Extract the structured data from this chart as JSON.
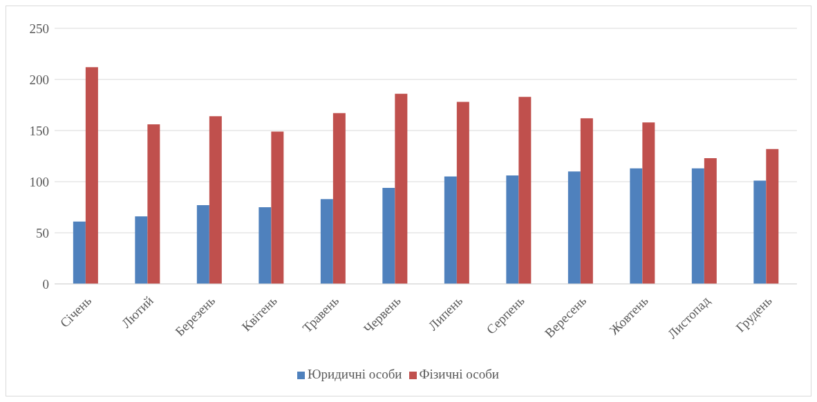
{
  "chart_data": {
    "type": "bar",
    "categories": [
      "Січень",
      "Лютий",
      "Березень",
      "Квітень",
      "Травень",
      "Червень",
      "Липень",
      "Серпень",
      "Вересень",
      "Жовтень",
      "Листопад",
      "Грудень"
    ],
    "series": [
      {
        "name": "Юридичні особи",
        "color": "#4f81bd",
        "values": [
          61,
          66,
          77,
          75,
          83,
          94,
          105,
          106,
          110,
          113,
          113,
          101
        ]
      },
      {
        "name": "Фізичні особи",
        "color": "#c0504d",
        "values": [
          212,
          156,
          164,
          149,
          167,
          186,
          178,
          183,
          162,
          158,
          123,
          132
        ]
      }
    ],
    "ylim": [
      0,
      250
    ],
    "yticks": [
      0,
      50,
      100,
      150,
      200,
      250
    ],
    "grid": "y",
    "legend": "bottom"
  }
}
